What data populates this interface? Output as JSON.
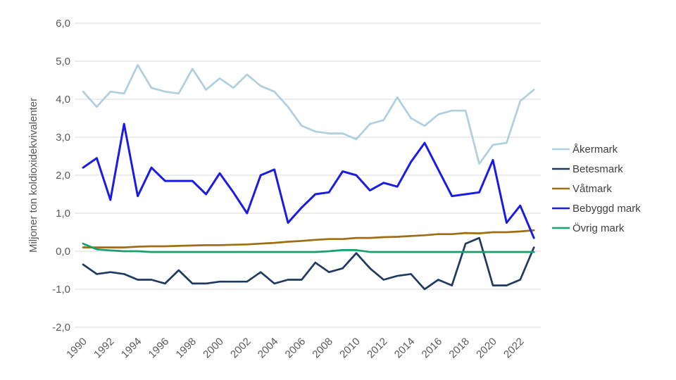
{
  "chart_data": {
    "type": "line",
    "title": "",
    "xlabel": "",
    "ylabel": "Miljoner ton koldioxidekvivalenter",
    "ylim": [
      -2.0,
      6.0
    ],
    "ytick_step": 1.0,
    "decimal_separator": ",",
    "grid": "horizontal",
    "gridline_color": "#d9d9d9",
    "legend_position": "right",
    "x": [
      1990,
      1991,
      1992,
      1993,
      1994,
      1995,
      1996,
      1997,
      1998,
      1999,
      2000,
      2001,
      2002,
      2003,
      2004,
      2005,
      2006,
      2007,
      2008,
      2009,
      2010,
      2011,
      2012,
      2013,
      2014,
      2015,
      2016,
      2017,
      2018,
      2019,
      2020,
      2021,
      2022,
      2023
    ],
    "xtick_years": [
      1990,
      1992,
      1994,
      1996,
      1998,
      2000,
      2002,
      2004,
      2006,
      2008,
      2010,
      2012,
      2014,
      2016,
      2018,
      2020,
      2022
    ],
    "series": [
      {
        "name": "Åkermark",
        "color": "#aecfdf",
        "values": [
          4.2,
          3.8,
          4.2,
          4.15,
          4.9,
          4.3,
          4.2,
          4.15,
          4.8,
          4.25,
          4.55,
          4.3,
          4.65,
          4.35,
          4.2,
          3.8,
          3.3,
          3.15,
          3.1,
          3.1,
          2.95,
          3.35,
          3.45,
          4.05,
          3.5,
          3.3,
          3.6,
          3.7,
          3.7,
          2.3,
          2.8,
          2.85,
          3.95,
          4.25
        ]
      },
      {
        "name": "Betesmark",
        "color": "#1f3a60",
        "values": [
          -0.35,
          -0.6,
          -0.55,
          -0.6,
          -0.75,
          -0.75,
          -0.85,
          -0.5,
          -0.85,
          -0.85,
          -0.8,
          -0.8,
          -0.8,
          -0.55,
          -0.85,
          -0.75,
          -0.75,
          -0.3,
          -0.55,
          -0.45,
          -0.05,
          -0.45,
          -0.75,
          -0.65,
          -0.6,
          -1.0,
          -0.75,
          -0.9,
          0.2,
          0.35,
          -0.9,
          -0.9,
          -0.75,
          0.1
        ]
      },
      {
        "name": "Våtmark",
        "color": "#9f6d14",
        "values": [
          0.1,
          0.1,
          0.1,
          0.1,
          0.12,
          0.13,
          0.13,
          0.14,
          0.15,
          0.16,
          0.16,
          0.17,
          0.18,
          0.2,
          0.22,
          0.25,
          0.27,
          0.3,
          0.32,
          0.32,
          0.35,
          0.35,
          0.37,
          0.38,
          0.4,
          0.42,
          0.45,
          0.45,
          0.48,
          0.47,
          0.5,
          0.5,
          0.52,
          0.55
        ]
      },
      {
        "name": "Bebyggd mark",
        "color": "#1b1be6",
        "values": [
          2.2,
          2.45,
          1.35,
          3.35,
          1.45,
          2.2,
          1.85,
          1.85,
          1.85,
          1.5,
          2.05,
          1.55,
          1.0,
          2.0,
          2.15,
          0.75,
          1.15,
          1.5,
          1.55,
          2.1,
          2.0,
          1.6,
          1.8,
          1.7,
          2.35,
          2.85,
          2.15,
          1.45,
          1.5,
          1.55,
          2.4,
          0.75,
          1.2,
          0.35
        ]
      },
      {
        "name": "Övrig mark",
        "color": "#18a06e",
        "values": [
          0.2,
          0.05,
          0.02,
          0.0,
          0.0,
          -0.02,
          -0.02,
          -0.02,
          -0.02,
          -0.02,
          -0.02,
          -0.02,
          -0.02,
          -0.02,
          -0.02,
          -0.02,
          -0.02,
          -0.02,
          0.0,
          0.03,
          0.03,
          -0.02,
          -0.02,
          -0.02,
          -0.02,
          -0.02,
          -0.02,
          -0.02,
          -0.02,
          -0.02,
          -0.02,
          -0.02,
          -0.02,
          -0.02
        ]
      }
    ]
  }
}
